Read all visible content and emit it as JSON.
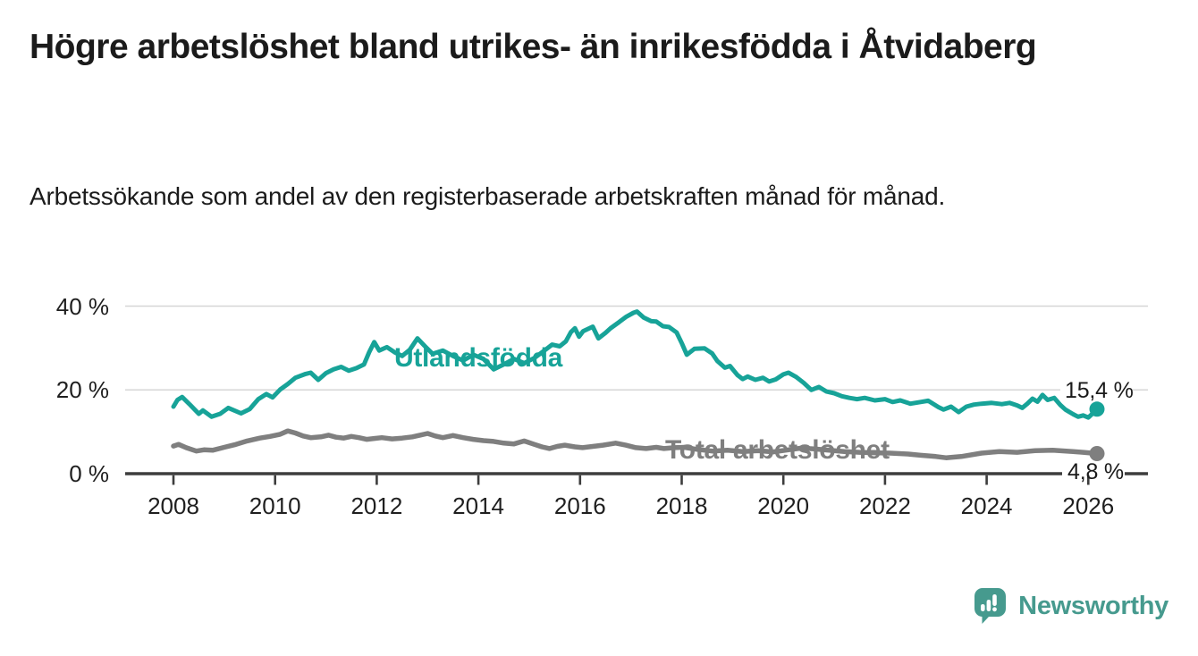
{
  "header": {
    "title": "Högre arbetslöshet bland utrikes- än inrikesfödda i Åtvidaberg",
    "subtitle": "Arbetssökande som andel av den registerbaserade arbetskraften månad för månad."
  },
  "footer": {
    "brand": "Newsworthy",
    "logo_icon": "bar-chart-speech-bubble-icon"
  },
  "colors": {
    "foreign_born_line": "#17a398",
    "total_line": "#7f7f7f",
    "axis": "#3d3d3d",
    "gridline": "#d6d6d6",
    "text": "#1b1b1b",
    "brand_teal": "#469a8e",
    "background": "#ffffff"
  },
  "chart_data": {
    "type": "line",
    "title": "Högre arbetslöshet bland utrikes- än inrikesfödda i Åtvidaberg",
    "subtitle": "Arbetssökande som andel av den registerbaserade arbetskraften månad för månad.",
    "unit": "%",
    "grid": "horizontal-only",
    "x_axis": {
      "tick_years": [
        2008,
        2010,
        2012,
        2014,
        2016,
        2018,
        2020,
        2022,
        2024,
        2026
      ],
      "range_years": [
        2007.1,
        2027.2
      ]
    },
    "y_axis": {
      "tick_values": [
        40,
        20,
        0
      ],
      "tick_labels": [
        "40 %",
        "20 %",
        "0 %"
      ],
      "range": [
        0,
        42
      ]
    },
    "series": [
      {
        "name": "Total arbetslöshet",
        "color": "#7f7f7f",
        "end_label": "4,8 %",
        "end_value": 4.8,
        "points": [
          [
            2008.0,
            6.6
          ],
          [
            2008.1,
            7.0
          ],
          [
            2008.25,
            6.2
          ],
          [
            2008.45,
            5.4
          ],
          [
            2008.6,
            5.7
          ],
          [
            2008.77,
            5.6
          ],
          [
            2009.0,
            6.3
          ],
          [
            2009.2,
            6.9
          ],
          [
            2009.45,
            7.8
          ],
          [
            2009.7,
            8.5
          ],
          [
            2009.9,
            8.9
          ],
          [
            2010.1,
            9.4
          ],
          [
            2010.25,
            10.2
          ],
          [
            2010.4,
            9.7
          ],
          [
            2010.55,
            9.0
          ],
          [
            2010.7,
            8.6
          ],
          [
            2010.9,
            8.8
          ],
          [
            2011.05,
            9.2
          ],
          [
            2011.2,
            8.7
          ],
          [
            2011.35,
            8.5
          ],
          [
            2011.5,
            8.9
          ],
          [
            2011.65,
            8.6
          ],
          [
            2011.8,
            8.2
          ],
          [
            2011.95,
            8.4
          ],
          [
            2012.1,
            8.6
          ],
          [
            2012.3,
            8.3
          ],
          [
            2012.5,
            8.5
          ],
          [
            2012.7,
            8.8
          ],
          [
            2012.85,
            9.2
          ],
          [
            2013.0,
            9.6
          ],
          [
            2013.15,
            9.0
          ],
          [
            2013.3,
            8.6
          ],
          [
            2013.5,
            9.1
          ],
          [
            2013.7,
            8.6
          ],
          [
            2013.9,
            8.2
          ],
          [
            2014.1,
            7.9
          ],
          [
            2014.3,
            7.7
          ],
          [
            2014.5,
            7.3
          ],
          [
            2014.7,
            7.1
          ],
          [
            2014.9,
            7.8
          ],
          [
            2015.1,
            7.0
          ],
          [
            2015.25,
            6.4
          ],
          [
            2015.4,
            6.0
          ],
          [
            2015.55,
            6.5
          ],
          [
            2015.7,
            6.8
          ],
          [
            2015.9,
            6.4
          ],
          [
            2016.05,
            6.2
          ],
          [
            2016.25,
            6.5
          ],
          [
            2016.45,
            6.8
          ],
          [
            2016.7,
            7.3
          ],
          [
            2016.9,
            6.8
          ],
          [
            2017.1,
            6.2
          ],
          [
            2017.3,
            6.0
          ],
          [
            2017.5,
            6.3
          ],
          [
            2017.65,
            6.0
          ],
          [
            2017.85,
            6.2
          ],
          [
            2018.05,
            6.3
          ],
          [
            2018.3,
            5.8
          ],
          [
            2018.6,
            5.4
          ],
          [
            2018.9,
            5.6
          ],
          [
            2019.2,
            5.3
          ],
          [
            2019.5,
            5.5
          ],
          [
            2019.8,
            5.2
          ],
          [
            2020.1,
            5.7
          ],
          [
            2020.35,
            6.1
          ],
          [
            2020.6,
            5.9
          ],
          [
            2020.9,
            5.6
          ],
          [
            2021.2,
            5.3
          ],
          [
            2021.5,
            5.1
          ],
          [
            2021.8,
            5.0
          ],
          [
            2022.1,
            4.9
          ],
          [
            2022.45,
            4.7
          ],
          [
            2022.7,
            4.4
          ],
          [
            2023.0,
            4.1
          ],
          [
            2023.2,
            3.8
          ],
          [
            2023.5,
            4.1
          ],
          [
            2023.9,
            4.9
          ],
          [
            2024.25,
            5.3
          ],
          [
            2024.6,
            5.1
          ],
          [
            2024.95,
            5.5
          ],
          [
            2025.3,
            5.6
          ],
          [
            2025.7,
            5.3
          ],
          [
            2025.9,
            5.1
          ],
          [
            2026.17,
            4.8
          ]
        ]
      },
      {
        "name": "Utlandsfödda",
        "color": "#17a398",
        "end_label": "15,4 %",
        "end_value": 15.4,
        "points": [
          [
            2008.0,
            16.0
          ],
          [
            2008.08,
            17.6
          ],
          [
            2008.17,
            18.3
          ],
          [
            2008.33,
            16.4
          ],
          [
            2008.5,
            14.3
          ],
          [
            2008.58,
            15.1
          ],
          [
            2008.75,
            13.6
          ],
          [
            2008.92,
            14.3
          ],
          [
            2009.08,
            15.7
          ],
          [
            2009.33,
            14.4
          ],
          [
            2009.5,
            15.4
          ],
          [
            2009.67,
            17.8
          ],
          [
            2009.83,
            19.0
          ],
          [
            2009.95,
            18.2
          ],
          [
            2010.1,
            20.1
          ],
          [
            2010.25,
            21.4
          ],
          [
            2010.4,
            22.9
          ],
          [
            2010.6,
            23.8
          ],
          [
            2010.7,
            24.1
          ],
          [
            2010.85,
            22.4
          ],
          [
            2011.0,
            24.0
          ],
          [
            2011.15,
            24.9
          ],
          [
            2011.3,
            25.5
          ],
          [
            2011.45,
            24.6
          ],
          [
            2011.6,
            25.2
          ],
          [
            2011.75,
            26.1
          ],
          [
            2011.85,
            29.0
          ],
          [
            2011.95,
            31.4
          ],
          [
            2012.05,
            29.4
          ],
          [
            2012.2,
            30.2
          ],
          [
            2012.35,
            29.0
          ],
          [
            2012.5,
            28.1
          ],
          [
            2012.65,
            29.6
          ],
          [
            2012.8,
            32.3
          ],
          [
            2012.95,
            30.4
          ],
          [
            2013.1,
            28.6
          ],
          [
            2013.3,
            29.4
          ],
          [
            2013.5,
            28.1
          ],
          [
            2013.7,
            27.0
          ],
          [
            2013.9,
            28.4
          ],
          [
            2014.1,
            27.4
          ],
          [
            2014.3,
            24.9
          ],
          [
            2014.5,
            26.1
          ],
          [
            2014.7,
            27.4
          ],
          [
            2014.9,
            26.4
          ],
          [
            2015.1,
            27.6
          ],
          [
            2015.3,
            29.4
          ],
          [
            2015.45,
            30.8
          ],
          [
            2015.6,
            30.4
          ],
          [
            2015.72,
            31.6
          ],
          [
            2015.82,
            33.8
          ],
          [
            2015.9,
            34.7
          ],
          [
            2015.98,
            32.7
          ],
          [
            2016.06,
            34.0
          ],
          [
            2016.25,
            35.1
          ],
          [
            2016.36,
            32.3
          ],
          [
            2016.5,
            33.6
          ],
          [
            2016.6,
            34.7
          ],
          [
            2016.77,
            36.2
          ],
          [
            2016.9,
            37.4
          ],
          [
            2017.05,
            38.4
          ],
          [
            2017.12,
            38.7
          ],
          [
            2017.25,
            37.3
          ],
          [
            2017.4,
            36.4
          ],
          [
            2017.5,
            36.3
          ],
          [
            2017.63,
            35.2
          ],
          [
            2017.75,
            35.0
          ],
          [
            2017.9,
            33.7
          ],
          [
            2018.0,
            31.2
          ],
          [
            2018.1,
            28.4
          ],
          [
            2018.25,
            29.8
          ],
          [
            2018.45,
            29.9
          ],
          [
            2018.6,
            28.7
          ],
          [
            2018.7,
            26.9
          ],
          [
            2018.85,
            25.3
          ],
          [
            2018.95,
            25.7
          ],
          [
            2019.1,
            23.5
          ],
          [
            2019.2,
            22.6
          ],
          [
            2019.3,
            23.2
          ],
          [
            2019.45,
            22.4
          ],
          [
            2019.6,
            22.9
          ],
          [
            2019.72,
            22.0
          ],
          [
            2019.85,
            22.5
          ],
          [
            2020.0,
            23.7
          ],
          [
            2020.1,
            24.1
          ],
          [
            2020.25,
            23.1
          ],
          [
            2020.4,
            21.7
          ],
          [
            2020.55,
            20.0
          ],
          [
            2020.7,
            20.7
          ],
          [
            2020.85,
            19.6
          ],
          [
            2021.0,
            19.2
          ],
          [
            2021.15,
            18.5
          ],
          [
            2021.3,
            18.1
          ],
          [
            2021.45,
            17.8
          ],
          [
            2021.6,
            18.1
          ],
          [
            2021.8,
            17.5
          ],
          [
            2022.0,
            17.8
          ],
          [
            2022.15,
            17.1
          ],
          [
            2022.3,
            17.5
          ],
          [
            2022.5,
            16.7
          ],
          [
            2022.7,
            17.1
          ],
          [
            2022.85,
            17.4
          ],
          [
            2023.05,
            15.9
          ],
          [
            2023.15,
            15.3
          ],
          [
            2023.3,
            16.0
          ],
          [
            2023.45,
            14.7
          ],
          [
            2023.6,
            16.0
          ],
          [
            2023.75,
            16.5
          ],
          [
            2023.9,
            16.7
          ],
          [
            2024.1,
            16.9
          ],
          [
            2024.3,
            16.6
          ],
          [
            2024.45,
            16.9
          ],
          [
            2024.6,
            16.3
          ],
          [
            2024.7,
            15.7
          ],
          [
            2024.8,
            16.7
          ],
          [
            2024.9,
            17.9
          ],
          [
            2025.0,
            17.2
          ],
          [
            2025.1,
            18.8
          ],
          [
            2025.2,
            17.6
          ],
          [
            2025.33,
            18.1
          ],
          [
            2025.45,
            16.4
          ],
          [
            2025.55,
            15.3
          ],
          [
            2025.7,
            14.2
          ],
          [
            2025.8,
            13.6
          ],
          [
            2025.9,
            13.9
          ],
          [
            2026.0,
            13.4
          ],
          [
            2026.08,
            14.3
          ],
          [
            2026.17,
            15.4
          ]
        ]
      }
    ]
  }
}
